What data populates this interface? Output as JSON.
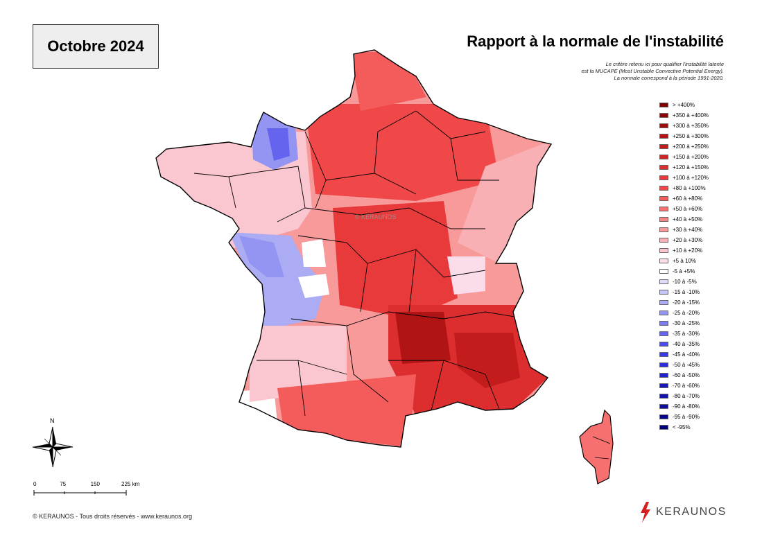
{
  "header": {
    "date_label": "Octobre 2024",
    "title": "Rapport à la normale de l'instabilité"
  },
  "criteria_note": {
    "line1": "Le critère retenu ici pour qualifier l'instabilité latente",
    "line2": "est la MUCAPE (Most Unstable Convective Potential Energy).",
    "line3": "La normale correspond à la période 1991-2020."
  },
  "legend": {
    "items": [
      {
        "label": "> +400%",
        "color": "#7a0000"
      },
      {
        "label": "+350 à +400%",
        "color": "#8c0606"
      },
      {
        "label": "+300 à +350%",
        "color": "#9e0c0c"
      },
      {
        "label": "+250 à +300%",
        "color": "#b01414"
      },
      {
        "label": "+200 à +250%",
        "color": "#c21c1c"
      },
      {
        "label": "+150 à +200%",
        "color": "#cf2424"
      },
      {
        "label": "+120 à +150%",
        "color": "#dc2e2e"
      },
      {
        "label": "+100 à +120%",
        "color": "#e83a3a"
      },
      {
        "label": "+80 à +100%",
        "color": "#f04848"
      },
      {
        "label": "+60 à +80%",
        "color": "#f45c5c"
      },
      {
        "label": "+50 à +60%",
        "color": "#f67070"
      },
      {
        "label": "+40 à +50%",
        "color": "#f78585"
      },
      {
        "label": "+30 à +40%",
        "color": "#f89a9a"
      },
      {
        "label": "+20 à +30%",
        "color": "#f9b0b4"
      },
      {
        "label": "+10 à +20%",
        "color": "#fac6d0"
      },
      {
        "label": "+5 à 10%",
        "color": "#fbdcea"
      },
      {
        "label": "-5 à +5%",
        "color": "#ffffff"
      },
      {
        "label": "-10 à -5%",
        "color": "#dcdcf8"
      },
      {
        "label": "-15 à -10%",
        "color": "#c4c4f6"
      },
      {
        "label": "-20 à -15%",
        "color": "#acacf4"
      },
      {
        "label": "-25 à -20%",
        "color": "#9494f2"
      },
      {
        "label": "-30 à -25%",
        "color": "#7c7cf0"
      },
      {
        "label": "-35 à -30%",
        "color": "#6464ee"
      },
      {
        "label": "-40 à -35%",
        "color": "#4c4cec"
      },
      {
        "label": "-45 à -40%",
        "color": "#3838e6"
      },
      {
        "label": "-50 à -45%",
        "color": "#2c2cdc"
      },
      {
        "label": "-60 à -50%",
        "color": "#2222cc"
      },
      {
        "label": "-70 à -60%",
        "color": "#1a1abc"
      },
      {
        "label": "-80 à -70%",
        "color": "#1414aa"
      },
      {
        "label": "-90 à -80%",
        "color": "#0e0e98"
      },
      {
        "label": "-95 à -90%",
        "color": "#080886"
      },
      {
        "label": "< -95%",
        "color": "#020274"
      }
    ]
  },
  "map": {
    "watermark": "© KERAUNOS",
    "north_label": "N",
    "scale_ticks": [
      "0",
      "75",
      "150",
      "225 km"
    ],
    "scale_ticks_km": [
      0,
      75,
      150,
      225
    ]
  },
  "footer": {
    "copyright": "© KERAUNOS - Tous droits réservés - www.keraunos.org",
    "logo_text": "KERAUNOS"
  }
}
